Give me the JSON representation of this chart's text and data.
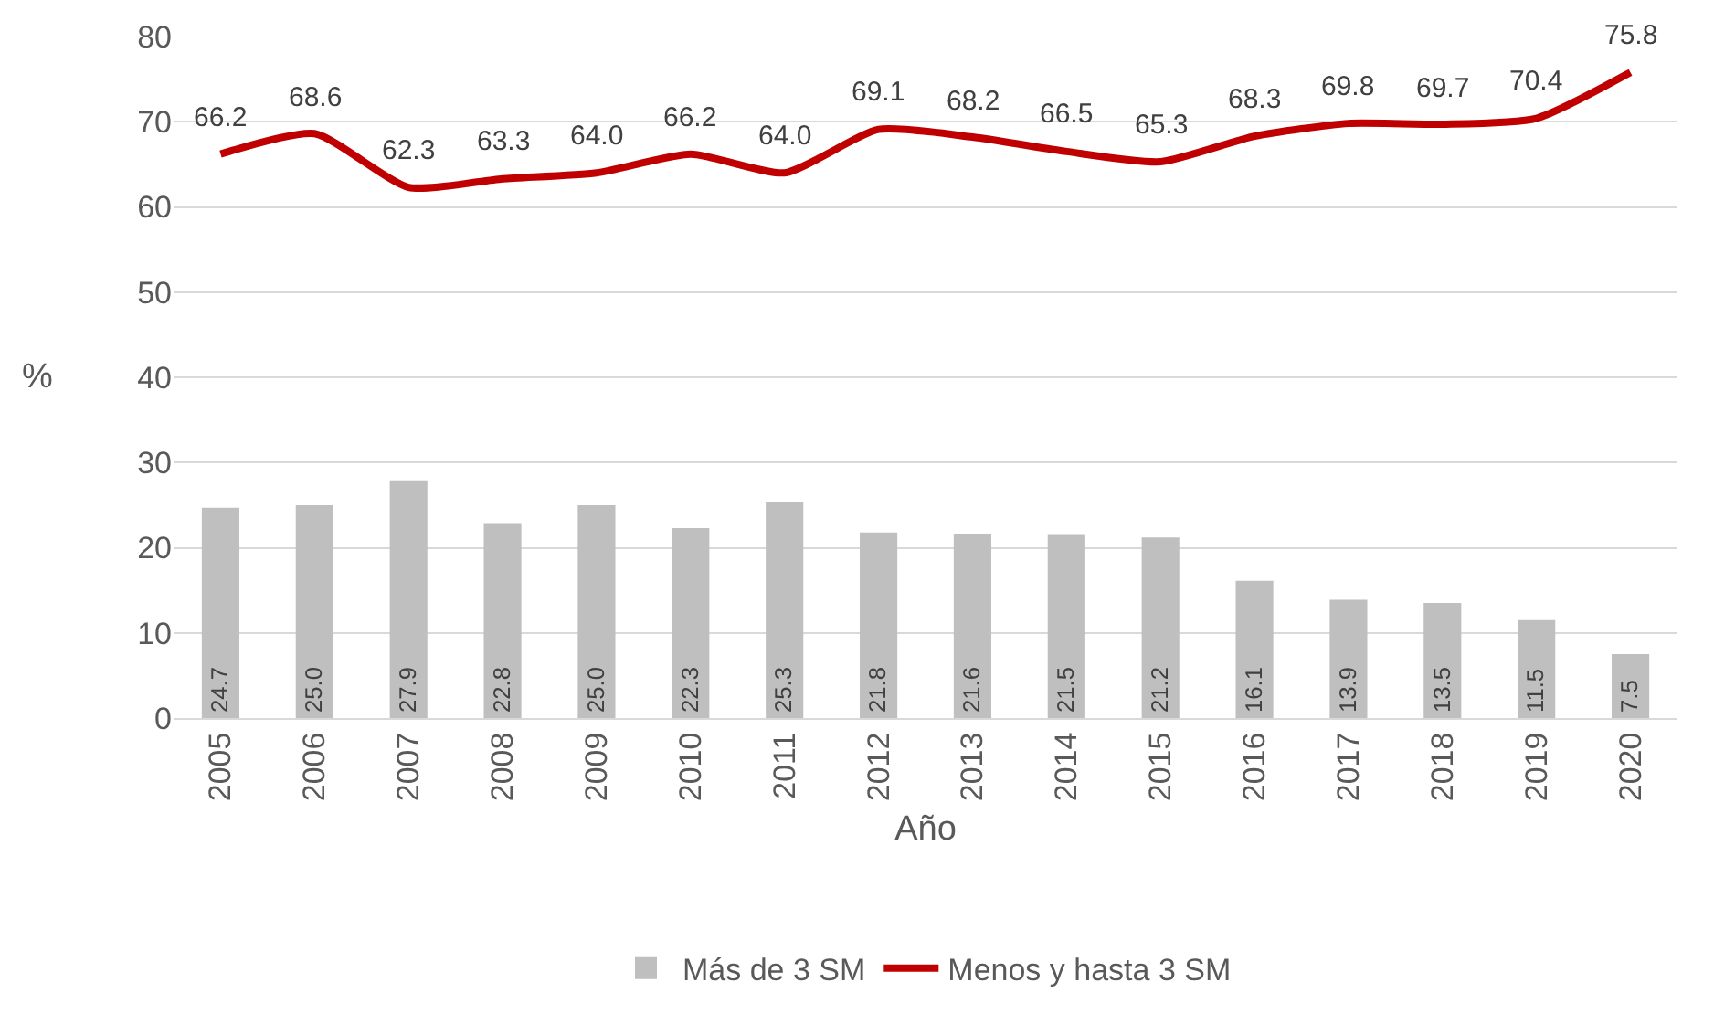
{
  "chart_data": {
    "type": "bar",
    "xlabel": "Año",
    "ylabel": "%",
    "categories": [
      "2005",
      "2006",
      "2007",
      "2008",
      "2009",
      "2010",
      "2011",
      "2012",
      "2013",
      "2014",
      "2015",
      "2016",
      "2017",
      "2018",
      "2019",
      "2020"
    ],
    "series": [
      {
        "name": "Más de 3 SM",
        "color": "#bfbfbf",
        "values": [
          24.7,
          25.0,
          27.9,
          22.8,
          25.0,
          22.3,
          25.3,
          21.8,
          21.6,
          21.5,
          21.2,
          16.1,
          13.9,
          13.5,
          11.5,
          7.5
        ],
        "value_labels": [
          "24.7",
          "25.0",
          "27.9",
          "22.8",
          "25.0",
          "22.3",
          "25.3",
          "21.8",
          "21.6",
          "21.5",
          "21.2",
          "16.1",
          "13.9",
          "13.5",
          "11.5",
          "7.5"
        ]
      },
      {
        "name": "Menos y hasta 3 SM",
        "type": "line",
        "color": "#c00000",
        "marker": "none",
        "values": [
          66.2,
          68.6,
          62.3,
          63.3,
          64.0,
          66.2,
          64.0,
          69.1,
          68.2,
          66.5,
          65.3,
          68.3,
          69.8,
          69.7,
          70.4,
          75.8
        ],
        "value_labels": [
          "66.2",
          "68.6",
          "62.3",
          "63.3",
          "64.0",
          "66.2",
          "64.0",
          "69.1",
          "68.2",
          "66.5",
          "65.3",
          "68.3",
          "69.8",
          "69.7",
          "70.4",
          "75.8"
        ]
      }
    ],
    "ylim": [
      0,
      80
    ],
    "yticks": [
      0,
      10,
      20,
      30,
      40,
      50,
      60,
      70,
      80
    ],
    "grid": "y",
    "legend": "bottom"
  }
}
